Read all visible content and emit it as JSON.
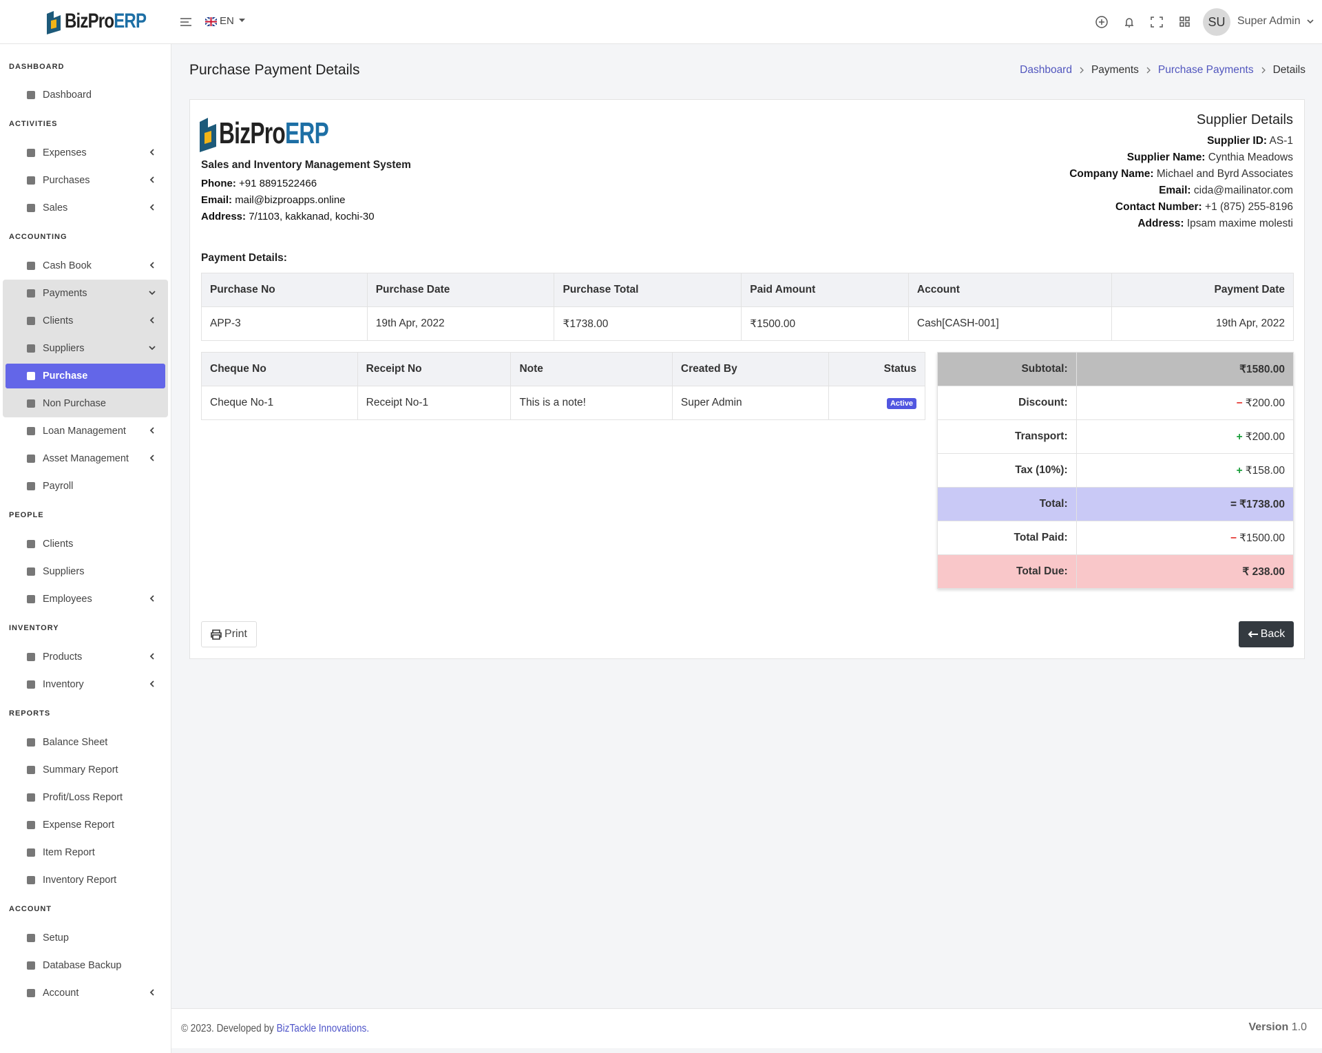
{
  "brand": {
    "name": "BizPro",
    "suffix": "ERP"
  },
  "topbar": {
    "language": "EN",
    "avatar": "SU",
    "user": "Super Admin"
  },
  "sidebar": {
    "sections": [
      {
        "title": "DASHBOARD",
        "items": [
          {
            "label": "Dashboard"
          }
        ]
      },
      {
        "title": "ACTIVITIES",
        "items": [
          {
            "label": "Expenses",
            "caret": "left"
          },
          {
            "label": "Purchases",
            "caret": "left"
          },
          {
            "label": "Sales",
            "caret": "left"
          }
        ]
      },
      {
        "title": "ACCOUNTING",
        "items": [
          {
            "label": "Cash Book",
            "caret": "left"
          },
          {
            "label": "Payments",
            "caret": "down",
            "children": [
              {
                "label": "Clients",
                "caret": "left"
              },
              {
                "label": "Suppliers",
                "caret": "down",
                "children": [
                  {
                    "label": "Purchase",
                    "active": true
                  },
                  {
                    "label": "Non Purchase"
                  }
                ]
              }
            ]
          },
          {
            "label": "Loan Management",
            "caret": "left"
          },
          {
            "label": "Asset Management",
            "caret": "left"
          },
          {
            "label": "Payroll"
          }
        ]
      },
      {
        "title": "PEOPLE",
        "items": [
          {
            "label": "Clients"
          },
          {
            "label": "Suppliers"
          },
          {
            "label": "Employees",
            "caret": "left"
          }
        ]
      },
      {
        "title": "INVENTORY",
        "items": [
          {
            "label": "Products",
            "caret": "left"
          },
          {
            "label": "Inventory",
            "caret": "left"
          }
        ]
      },
      {
        "title": "REPORTS",
        "items": [
          {
            "label": "Balance Sheet"
          },
          {
            "label": "Summary Report"
          },
          {
            "label": "Profit/Loss Report"
          },
          {
            "label": "Expense Report"
          },
          {
            "label": "Item Report"
          },
          {
            "label": "Inventory Report"
          }
        ]
      },
      {
        "title": "ACCOUNT",
        "items": [
          {
            "label": "Setup"
          },
          {
            "label": "Database Backup"
          },
          {
            "label": "Account",
            "caret": "left"
          }
        ]
      }
    ]
  },
  "page": {
    "title": "Purchase Payment Details",
    "breadcrumb": [
      {
        "label": "Dashboard",
        "link": true
      },
      {
        "label": "Payments"
      },
      {
        "label": "Purchase Payments",
        "link": true
      },
      {
        "label": "Details"
      }
    ]
  },
  "company": {
    "tagline": "Sales and Inventory Management System",
    "fields": [
      {
        "label": "Phone:",
        "value": "+91 8891522466"
      },
      {
        "label": "Email:",
        "value": "mail@bizproapps.online"
      },
      {
        "label": "Address:",
        "value": "7/1103, kakkanad, kochi-30"
      }
    ]
  },
  "supplier": {
    "title": "Supplier Details",
    "fields": [
      {
        "label": "Supplier ID:",
        "value": "AS-1"
      },
      {
        "label": "Supplier Name:",
        "value": "Cynthia Meadows"
      },
      {
        "label": "Company Name:",
        "value": "Michael and Byrd Associates"
      },
      {
        "label": "Email:",
        "value": "cida@mailinator.com"
      },
      {
        "label": "Contact Number:",
        "value": "+1 (875) 255-8196"
      },
      {
        "label": "Address:",
        "value": "Ipsam maxime molesti"
      }
    ]
  },
  "payment": {
    "heading": "Payment Details:",
    "columns": [
      "Purchase No",
      "Purchase Date",
      "Purchase Total",
      "Paid Amount",
      "Account",
      "Payment Date"
    ],
    "rows": [
      [
        "APP-3",
        "19th Apr, 2022",
        "₹1738.00",
        "₹1500.00",
        "Cash[CASH-001]",
        "19th Apr, 2022"
      ]
    ]
  },
  "details": {
    "columns": [
      "Cheque No",
      "Receipt No",
      "Note",
      "Created By",
      "Status"
    ],
    "rows": [
      [
        "Cheque No-1",
        "Receipt No-1",
        "This is a note!",
        "Super Admin",
        "Active"
      ]
    ]
  },
  "summary": [
    {
      "label": "Subtotal:",
      "value": "₹1580.00",
      "bg": "#bdbdbd"
    },
    {
      "label": "Discount:",
      "sign": "−",
      "sign_color": "#e3342f",
      "value": "₹200.00"
    },
    {
      "label": "Transport:",
      "sign": "+",
      "sign_color": "#1a9e3a",
      "value": "₹200.00"
    },
    {
      "label": "Tax (10%):",
      "sign": "+",
      "sign_color": "#1a9e3a",
      "value": "₹158.00"
    },
    {
      "label": "Total:",
      "sign": "=",
      "sign_color": "#222222",
      "value": "₹1738.00",
      "bg": "#c9c9f6"
    },
    {
      "label": "Total Paid:",
      "sign": "−",
      "sign_color": "#e3342f",
      "value": "₹1500.00"
    },
    {
      "label": "Total Due:",
      "value": "₹ 238.00",
      "bg": "#f9c7c9"
    }
  ],
  "buttons": {
    "print": "Print",
    "back": "Back"
  },
  "footer": {
    "copyright": "© 2023. Developed by",
    "company": "BizTackle Innovations.",
    "version_label": "Version",
    "version": "1.0"
  }
}
